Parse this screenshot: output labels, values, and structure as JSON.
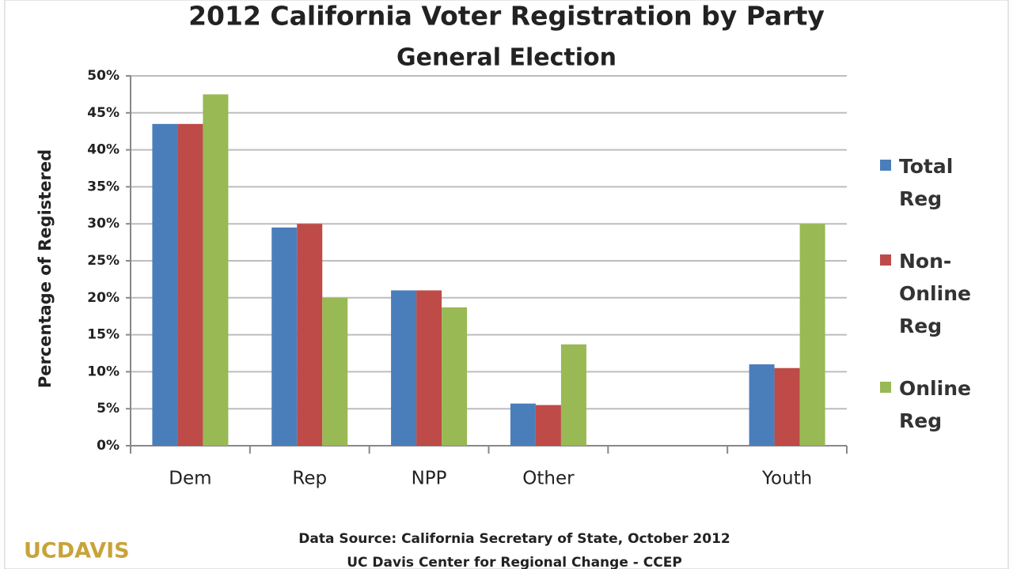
{
  "chart_data": {
    "type": "bar",
    "title": "2012 California Voter Registration by Party",
    "subtitle": "General Election",
    "y_label": "Percentage of Registered",
    "categories": [
      "Dem",
      "Rep",
      "NPP",
      "Other",
      null,
      "Youth"
    ],
    "series": [
      {
        "name": "Total Reg",
        "color": "#4a7ebb",
        "values": [
          43.5,
          29.5,
          21,
          5.7,
          null,
          11
        ]
      },
      {
        "name": "Non-Online Reg",
        "color": "#be4b48",
        "values": [
          43.5,
          30,
          21,
          5.5,
          null,
          10.5
        ]
      },
      {
        "name": "Online Reg",
        "color": "#98b954",
        "values": [
          47.5,
          20,
          18.7,
          13.7,
          null,
          30
        ]
      }
    ],
    "ylim": [
      0,
      50
    ],
    "yticks": [
      {
        "value": 0,
        "label": "0%"
      },
      {
        "value": 5,
        "label": "5%"
      },
      {
        "value": 10,
        "label": "10%"
      },
      {
        "value": 15,
        "label": "15%"
      },
      {
        "value": 20,
        "label": "20%"
      },
      {
        "value": 25,
        "label": "25%"
      },
      {
        "value": 30,
        "label": "30%"
      },
      {
        "value": 35,
        "label": "35%"
      },
      {
        "value": 40,
        "label": "40%"
      },
      {
        "value": 45,
        "label": "45%"
      },
      {
        "value": 50,
        "label": "50%"
      }
    ],
    "grid": true,
    "legend": "right",
    "source": "Data Source: California Secretary of State, October 2012",
    "credit": "UC Davis Center for Regional Change - CCEP",
    "logo": "UCDAVIS"
  }
}
